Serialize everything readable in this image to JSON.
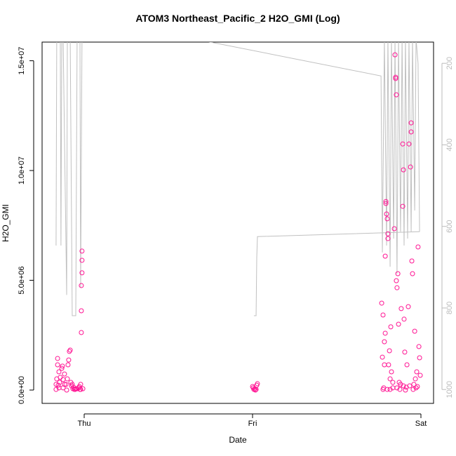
{
  "chart_data": {
    "type": "scatter",
    "title": "ATOM3 Northeast_Pacific_2 H2O_GMI (Log)",
    "xlabel": "Date",
    "ylabel": "H2O_GMI",
    "xlim": [
      -0.25,
      2.075
    ],
    "xticks": [
      {
        "value": 0,
        "label": "Thu"
      },
      {
        "value": 1,
        "label": "Fri"
      },
      {
        "value": 2,
        "label": "Sat"
      }
    ],
    "ylim": [
      -607000,
      15850000
    ],
    "yticks": [
      {
        "value": 0,
        "label": "0.0e+00"
      },
      {
        "value": 5000000,
        "label": "5.0e+06"
      },
      {
        "value": 10000000,
        "label": "1.0e+07"
      },
      {
        "value": 15000000,
        "label": "1.5e+07"
      }
    ],
    "y2lim": [
      1034,
      148
    ],
    "y2ticks": [
      200,
      400,
      600,
      800,
      1000
    ],
    "series": [
      {
        "color": "#ff1493",
        "x": [
          -0.167,
          -0.167,
          -0.163,
          -0.158,
          -0.158,
          -0.154,
          -0.15,
          -0.146,
          -0.142,
          -0.133,
          -0.129,
          -0.125,
          -0.125,
          -0.117,
          -0.108,
          -0.104,
          -0.1,
          -0.096,
          -0.092,
          -0.088,
          -0.083,
          -0.079,
          -0.075,
          -0.071,
          -0.067,
          -0.063,
          -0.054,
          -0.05,
          -0.042,
          -0.033,
          -0.029,
          -0.025,
          -0.021,
          -0.017,
          -0.017,
          -0.017,
          -0.013,
          -0.013,
          -0.013,
          -0.021,
          -0.008,
          -0.058,
          -0.15,
          -0.117,
          1.0,
          1.004,
          1.008,
          1.017,
          1.025,
          1.029,
          1.013,
          1.021,
          1.767,
          1.771,
          1.775,
          1.779,
          1.783,
          1.788,
          1.788,
          1.792,
          1.792,
          1.796,
          1.8,
          1.804,
          1.804,
          1.808,
          1.813,
          1.817,
          1.821,
          1.825,
          1.833,
          1.842,
          1.846,
          1.85,
          1.85,
          1.854,
          1.854,
          1.858,
          1.863,
          1.867,
          1.871,
          1.875,
          1.883,
          1.892,
          1.892,
          1.896,
          1.9,
          1.904,
          1.913,
          1.917,
          1.925,
          1.929,
          1.938,
          1.942,
          1.942,
          1.946,
          1.95,
          1.954,
          1.958,
          1.963,
          1.967,
          1.971,
          1.975,
          1.983,
          1.988,
          1.992,
          1.996,
          1.817,
          1.833,
          1.858,
          1.879,
          1.908,
          1.933,
          1.979,
          1.775,
          1.783,
          1.8,
          1.896
        ],
        "values": [
          30000,
          260000,
          510000,
          1150000,
          1440000,
          220000,
          830000,
          350000,
          580000,
          990000,
          1090000,
          480000,
          100000,
          730000,
          260000,
          0,
          510000,
          1150000,
          1370000,
          1760000,
          1820000,
          350000,
          190000,
          260000,
          60000,
          130000,
          30000,
          60000,
          60000,
          100000,
          160000,
          30000,
          260000,
          2620000,
          3610000,
          4760000,
          5340000,
          5910000,
          6330000,
          30000,
          60000,
          30000,
          100000,
          260000,
          160000,
          100000,
          30000,
          0,
          220000,
          290000,
          60000,
          30000,
          3960000,
          1500000,
          30000,
          100000,
          2200000,
          2590000,
          6100000,
          8590000,
          8500000,
          8020000,
          7800000,
          7120000,
          6900000,
          1150000,
          1790000,
          510000,
          2880000,
          830000,
          100000,
          7350000,
          15270000,
          14250000,
          14190000,
          13450000,
          4980000,
          4660000,
          5300000,
          3000000,
          350000,
          30000,
          3710000,
          8370000,
          11210000,
          10030000,
          3230000,
          1730000,
          130000,
          1150000,
          3800000,
          11210000,
          10160000,
          12170000,
          11760000,
          5880000,
          5300000,
          30000,
          260000,
          2680000,
          510000,
          100000,
          830000,
          6520000,
          1980000,
          1470000,
          670000,
          30000,
          350000,
          100000,
          260000,
          0,
          190000,
          160000,
          3420000,
          1150000,
          30000,
          190000
        ]
      },
      {
        "type": "line",
        "axis": "y2",
        "color": "#c0c0c0",
        "x": [
          -0.167,
          -0.163,
          -0.142,
          -0.138,
          -0.133,
          -0.125,
          -0.104,
          -0.1,
          -0.083,
          -0.071,
          -0.05,
          -0.042,
          -0.025,
          -0.021,
          -0.013,
          -0.008,
          1.763,
          1.771,
          1.783,
          1.796,
          1.804,
          1.817,
          1.825,
          1.838,
          1.846,
          1.858,
          1.867,
          1.879,
          1.888,
          1.9,
          1.908,
          1.921,
          1.929,
          1.942,
          1.95,
          1.963,
          1.971,
          1.983,
          1.992,
          null,
          1.008,
          1.021,
          1.025,
          1.029,
          1.992
        ],
        "values": [
          647,
          140,
          140,
          647,
          140,
          140,
          768,
          140,
          140,
          819,
          819,
          140,
          140,
          750,
          140,
          86,
          231,
          664,
          140,
          647,
          140,
          699,
          140,
          630,
          140,
          716,
          140,
          613,
          140,
          647,
          140,
          630,
          140,
          613,
          140,
          561,
          140,
          200,
          613,
          null,
          819,
          819,
          676,
          625,
          613
        ]
      }
    ]
  }
}
